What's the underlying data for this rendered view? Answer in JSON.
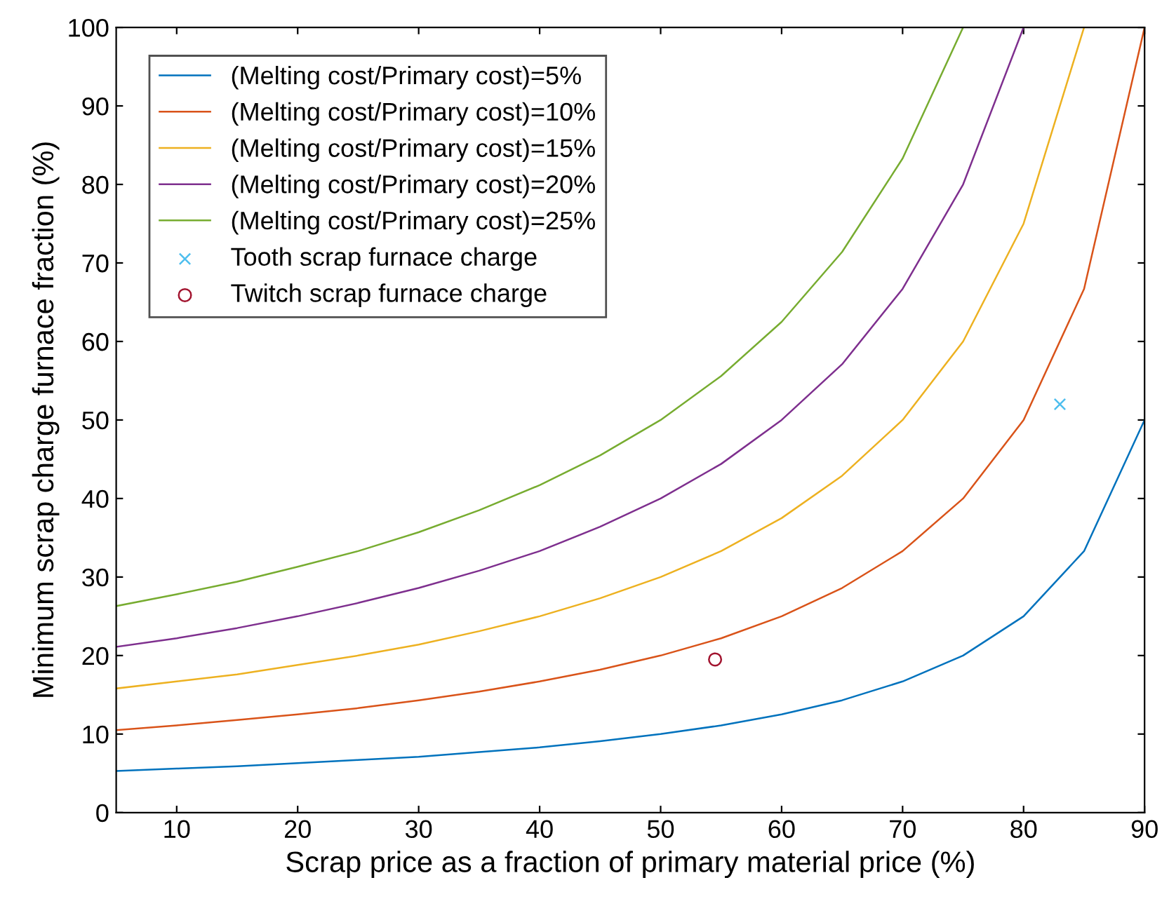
{
  "chart_data": {
    "type": "line",
    "xlabel": "Scrap price as a fraction of primary material price (%)",
    "ylabel": "Minimum scrap charge furnace fraction (%)",
    "x": [
      5,
      10,
      15,
      20,
      25,
      30,
      35,
      40,
      45,
      50,
      55,
      60,
      65,
      70,
      75,
      80,
      85,
      90
    ],
    "xlim": [
      5,
      90
    ],
    "xticks": [
      10,
      20,
      30,
      40,
      50,
      60,
      70,
      80,
      90
    ],
    "ylim": [
      0,
      100
    ],
    "yticks": [
      0,
      10,
      20,
      30,
      40,
      50,
      60,
      70,
      80,
      90,
      100
    ],
    "grid": false,
    "legend": "top left",
    "series": [
      {
        "name": "(Melting cost/Primary cost)=5%",
        "color": "#0072bd",
        "values": [
          5.3,
          5.6,
          5.9,
          6.3,
          6.7,
          7.1,
          7.7,
          8.3,
          9.1,
          10,
          11.1,
          12.5,
          14.3,
          16.7,
          20,
          25,
          33.3,
          50
        ]
      },
      {
        "name": "(Melting cost/Primary cost)=10%",
        "color": "#d95319",
        "values": [
          10.5,
          11.1,
          11.8,
          12.5,
          13.3,
          14.3,
          15.4,
          16.7,
          18.2,
          20,
          22.2,
          25,
          28.6,
          33.3,
          40,
          50,
          66.7,
          100
        ]
      },
      {
        "name": "(Melting cost/Primary cost)=15%",
        "color": "#edb120",
        "values": [
          15.8,
          16.7,
          17.6,
          18.8,
          20,
          21.4,
          23.1,
          25,
          27.3,
          30,
          33.3,
          37.5,
          42.9,
          50,
          60,
          75,
          100,
          null
        ]
      },
      {
        "name": "(Melting cost/Primary cost)=20%",
        "color": "#7e2f8e",
        "values": [
          21.1,
          22.2,
          23.5,
          25,
          26.7,
          28.6,
          30.8,
          33.3,
          36.4,
          40,
          44.4,
          50,
          57.1,
          66.7,
          80,
          100,
          null,
          null
        ]
      },
      {
        "name": "(Melting cost/Primary cost)=25%",
        "color": "#77ac30",
        "values": [
          26.3,
          27.8,
          29.4,
          31.3,
          33.3,
          35.7,
          38.5,
          41.7,
          45.5,
          50,
          55.6,
          62.5,
          71.4,
          83.3,
          100,
          null,
          null,
          null
        ]
      },
      {
        "name": "Tooth scrap furnace charge",
        "type": "scatter",
        "marker": "cross",
        "color": "#4dbeee",
        "x": [
          83
        ],
        "values": [
          52
        ]
      },
      {
        "name": "Twitch scrap furnace charge",
        "type": "scatter",
        "marker": "circle",
        "color": "#a2142f",
        "x": [
          54.5
        ],
        "values": [
          19.5
        ]
      }
    ]
  }
}
